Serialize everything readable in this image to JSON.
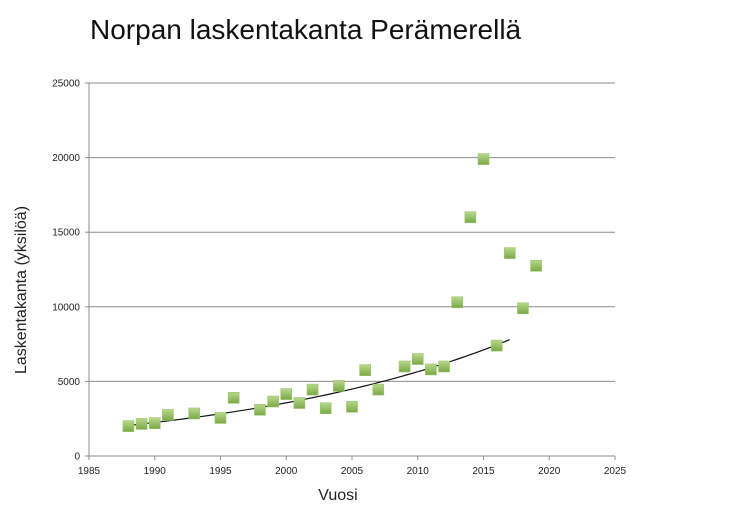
{
  "chart_data": {
    "type": "scatter",
    "title": "Norpan laskentakanta Perämerellä",
    "xlabel": "Vuosi",
    "ylabel": "Laskentakanta (yksilöä)",
    "xlim": [
      1985,
      2025
    ],
    "ylim": [
      0,
      25000
    ],
    "xticks": [
      1985,
      1990,
      1995,
      2000,
      2005,
      2010,
      2015,
      2020,
      2025
    ],
    "yticks": [
      0,
      5000,
      10000,
      15000,
      20000,
      25000
    ],
    "grid": "horizontal",
    "marker_color": "#8db85a",
    "trend_color": "#111111",
    "points": [
      {
        "x": 1988,
        "y": 2000
      },
      {
        "x": 1989,
        "y": 2150
      },
      {
        "x": 1990,
        "y": 2200
      },
      {
        "x": 1991,
        "y": 2750
      },
      {
        "x": 1993,
        "y": 2850
      },
      {
        "x": 1995,
        "y": 2550
      },
      {
        "x": 1996,
        "y": 3900
      },
      {
        "x": 1998,
        "y": 3100
      },
      {
        "x": 1999,
        "y": 3650
      },
      {
        "x": 2000,
        "y": 4150
      },
      {
        "x": 2001,
        "y": 3550
      },
      {
        "x": 2002,
        "y": 4450
      },
      {
        "x": 2003,
        "y": 3200
      },
      {
        "x": 2004,
        "y": 4700
      },
      {
        "x": 2005,
        "y": 3300
      },
      {
        "x": 2006,
        "y": 5750
      },
      {
        "x": 2007,
        "y": 4450
      },
      {
        "x": 2009,
        "y": 6000
      },
      {
        "x": 2010,
        "y": 6500
      },
      {
        "x": 2011,
        "y": 5800
      },
      {
        "x": 2012,
        "y": 6000
      },
      {
        "x": 2013,
        "y": 10300
      },
      {
        "x": 2014,
        "y": 16000
      },
      {
        "x": 2015,
        "y": 19900
      },
      {
        "x": 2016,
        "y": 7400
      },
      {
        "x": 2017,
        "y": 13600
      },
      {
        "x": 2018,
        "y": 9900
      },
      {
        "x": 2019,
        "y": 12750
      }
    ],
    "trendline": {
      "type": "exponential",
      "x_start": 1988,
      "x_end": 2017,
      "y_start": 2050,
      "y_end": 7800
    }
  }
}
